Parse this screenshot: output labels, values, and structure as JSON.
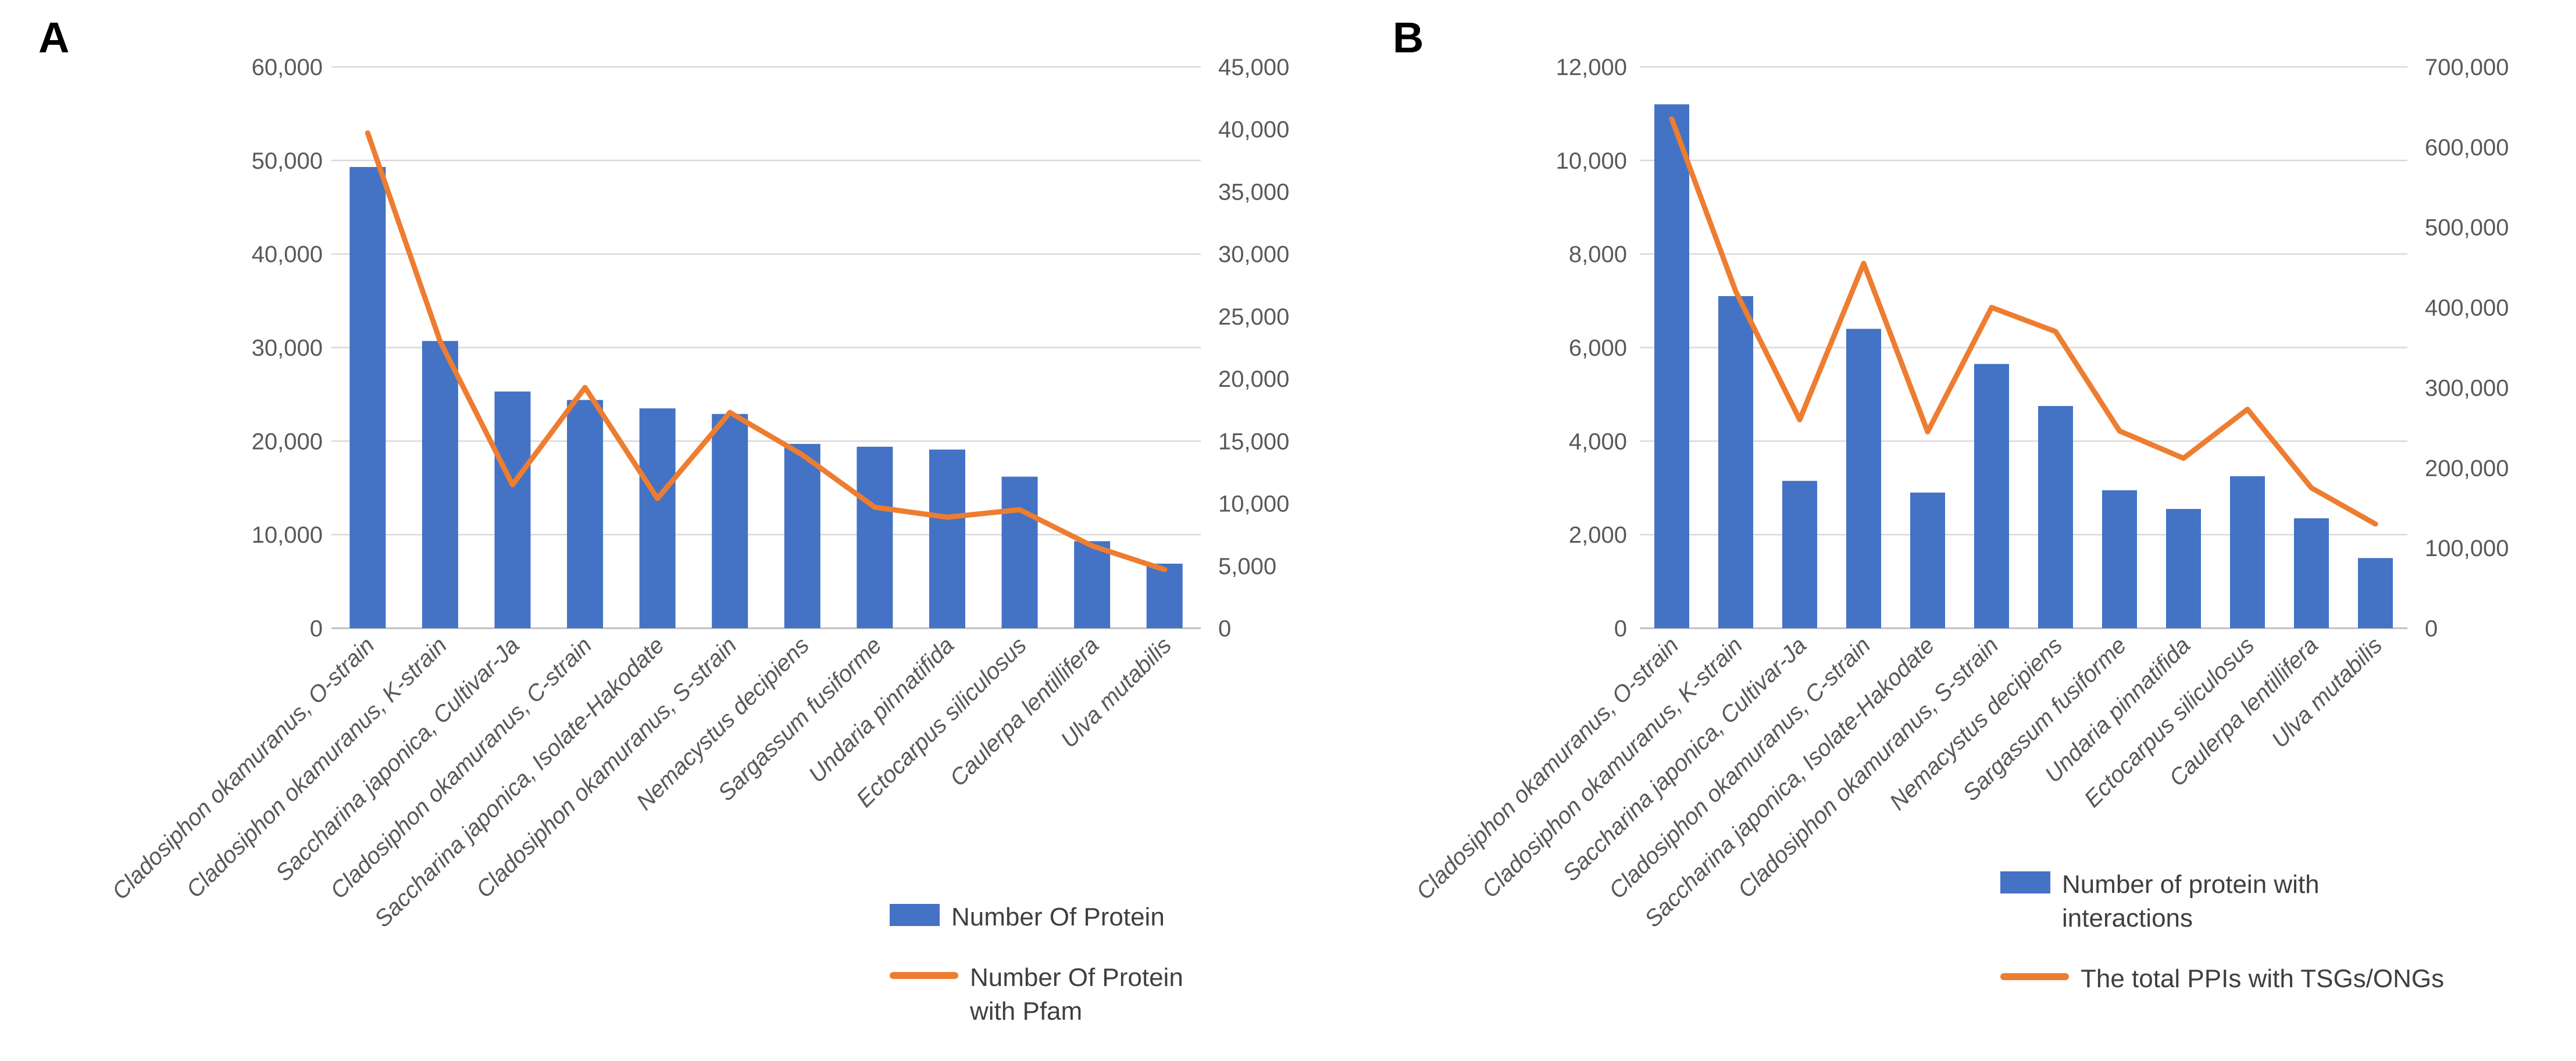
{
  "figure": {
    "background": "#ffffff",
    "panel_labels": {
      "a": "A",
      "b": "B"
    }
  },
  "colors": {
    "bar": "#4472C4",
    "line": "#ED7D31",
    "gridline": "#D9D9D9",
    "axis_line": "#BFBFBF",
    "tick_text": "#595959",
    "category_text": "#595959",
    "legend_text": "#3f3f3f"
  },
  "categories": [
    "Cladosiphon okamuranus, O-strain",
    "Cladosiphon okamuranus, K-strain",
    "Saccharina japonica, Cultivar-Ja",
    "Cladosiphon okamuranus, C-strain",
    "Saccharina japonica, Isolate-Hakodate",
    "Cladosiphon okamuranus, S-strain",
    "Nemacystus decipiens",
    "Sargassum fusiforme",
    "Undaria pinnatifida",
    "Ectocarpus siliculosus",
    "Caulerpa lentillifera",
    "Ulva mutabilis"
  ],
  "legend_a": [
    {
      "marker": "bar",
      "label": "Number Of Protein"
    },
    {
      "marker": "line",
      "label": "Number Of Protein with Pfam"
    }
  ],
  "legend_b": [
    {
      "marker": "bar",
      "label": "Number of protein with interactions"
    },
    {
      "marker": "line",
      "label": "The total PPIs with TSGs/ONGs"
    }
  ],
  "chart_data": [
    {
      "type": "bar",
      "panel": "A",
      "title": "",
      "xlabel": "",
      "ylabel": "",
      "grid": true,
      "legend_position": "bottom-right",
      "categories": [
        "Cladosiphon okamuranus, O-strain",
        "Cladosiphon okamuranus, K-strain",
        "Saccharina japonica, Cultivar-Ja",
        "Cladosiphon okamuranus, C-strain",
        "Saccharina japonica, Isolate-Hakodate",
        "Cladosiphon okamuranus, S-strain",
        "Nemacystus decipiens",
        "Sargassum fusiforme",
        "Undaria pinnatifida",
        "Ectocarpus siliculosus",
        "Caulerpa lentillifera",
        "Ulva mutabilis"
      ],
      "left_axis": {
        "min": 0,
        "max": 60000,
        "step": 10000
      },
      "right_axis": {
        "min": 0,
        "max": 45000,
        "step": 5000
      },
      "series": [
        {
          "name": "Number Of Protein",
          "type": "bar",
          "axis": "left",
          "values": [
            49300,
            30700,
            25300,
            24400,
            23500,
            22900,
            19700,
            19400,
            19100,
            16200,
            9300,
            6900
          ]
        },
        {
          "name": "Number Of Protein with Pfam",
          "type": "line",
          "axis": "right",
          "values": [
            39700,
            23000,
            11500,
            19300,
            10400,
            17300,
            13900,
            9700,
            8900,
            9500,
            6600,
            4700
          ]
        }
      ]
    },
    {
      "type": "bar",
      "panel": "B",
      "title": "",
      "xlabel": "",
      "ylabel": "",
      "grid": true,
      "legend_position": "bottom-right",
      "categories": [
        "Cladosiphon okamuranus, O-strain",
        "Cladosiphon okamuranus, K-strain",
        "Saccharina japonica, Cultivar-Ja",
        "Cladosiphon okamuranus, C-strain",
        "Saccharina japonica, Isolate-Hakodate",
        "Cladosiphon okamuranus, S-strain",
        "Nemacystus decipiens",
        "Sargassum fusiforme",
        "Undaria pinnatifida",
        "Ectocarpus siliculosus",
        "Caulerpa lentillifera",
        "Ulva mutabilis"
      ],
      "left_axis": {
        "min": 0,
        "max": 12000,
        "step": 2000
      },
      "right_axis": {
        "min": 0,
        "max": 700000,
        "step": 100000
      },
      "series": [
        {
          "name": "Number of protein with interactions",
          "type": "bar",
          "axis": "left",
          "values": [
            11200,
            7100,
            3150,
            6400,
            2900,
            5650,
            4750,
            2950,
            2550,
            3250,
            2350,
            1500
          ]
        },
        {
          "name": "The total PPIs with TSGs/ONGs",
          "type": "line",
          "axis": "right",
          "values": [
            635000,
            420000,
            260000,
            455000,
            245000,
            400000,
            370000,
            246000,
            212000,
            273000,
            175000,
            130000
          ]
        }
      ]
    }
  ]
}
